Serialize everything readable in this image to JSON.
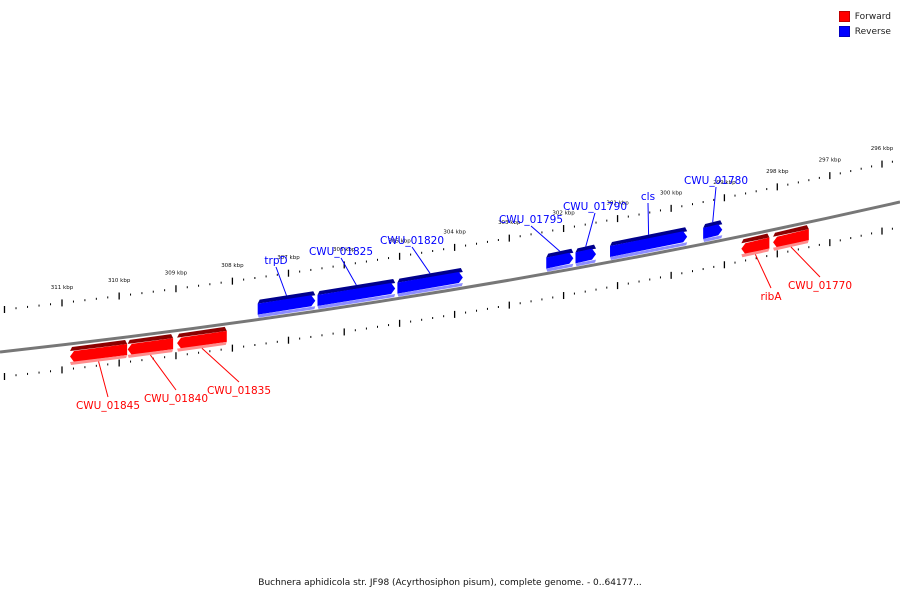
{
  "legend": [
    {
      "key": "forward",
      "label": "Forward",
      "color": "#ff0000"
    },
    {
      "key": "reverse",
      "label": "Reverse",
      "color": "#0000ff"
    }
  ],
  "caption": "Buchnera aphidicola str. JF98 (Acyrthosiphon pisum), complete genome. - 0..64177...",
  "colors": {
    "forward": "#ff0000",
    "reverse": "#0000ff",
    "backbone": "#777777"
  },
  "ruler_labels": [
    "311 kbp",
    "310 kbp",
    "309 kbp",
    "308 kbp",
    "307 kbp",
    "306 kbp",
    "305 kbp",
    "304 kbp",
    "303 kbp",
    "302 kbp",
    "301 kbp",
    "300 kbp",
    "299 kbp",
    "298 kbp",
    "297 kbp",
    "296 kbp"
  ],
  "genes": [
    {
      "name": "CWU_01845",
      "strand": "forward",
      "start_kbp": 310.86,
      "end_kbp": 309.86
    },
    {
      "name": "CWU_01840",
      "strand": "forward",
      "start_kbp": 309.85,
      "end_kbp": 309.05
    },
    {
      "name": "CWU_01835",
      "strand": "forward",
      "start_kbp": 308.98,
      "end_kbp": 308.1
    },
    {
      "name": "trpD",
      "strand": "reverse",
      "start_kbp": 307.55,
      "end_kbp": 306.52
    },
    {
      "name": "CWU_01825",
      "strand": "reverse",
      "start_kbp": 306.48,
      "end_kbp": 305.08
    },
    {
      "name": "CWU_01820",
      "strand": "reverse",
      "start_kbp": 305.04,
      "end_kbp": 303.85
    },
    {
      "name": "CWU_01795",
      "strand": "reverse",
      "start_kbp": 302.32,
      "end_kbp": 301.82
    },
    {
      "name": "CWU_01790",
      "strand": "reverse",
      "start_kbp": 301.78,
      "end_kbp": 301.4
    },
    {
      "name": "cls",
      "strand": "reverse",
      "start_kbp": 301.14,
      "end_kbp": 299.7
    },
    {
      "name": "CWU_01780",
      "strand": "reverse",
      "start_kbp": 299.4,
      "end_kbp": 299.04
    },
    {
      "name": "ribA",
      "strand": "forward",
      "start_kbp": 298.68,
      "end_kbp": 298.15
    },
    {
      "name": "CWU_01770",
      "strand": "forward",
      "start_kbp": 298.08,
      "end_kbp": 297.4
    }
  ]
}
